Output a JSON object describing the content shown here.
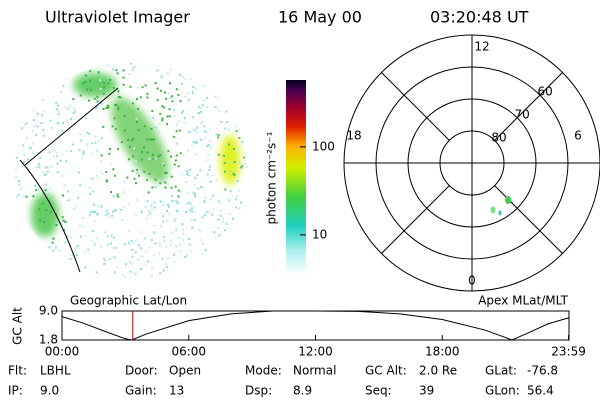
{
  "header": {
    "title": "Ultraviolet Imager",
    "date": "16 May 00",
    "time": "03:20:48 UT"
  },
  "colorbar": {
    "label": "photon cm⁻²s⁻¹",
    "scale": "log",
    "lim": [
      3.5,
      575
    ],
    "ticks": [
      10,
      100
    ]
  },
  "polar": {
    "rlim": [
      50,
      90
    ],
    "hour_labels": [
      "12",
      "18",
      "6",
      "0"
    ],
    "lat_rings": [
      60,
      70,
      80
    ]
  },
  "timeline": {
    "left_label": "Geographic Lat/Lon",
    "right_label": "Apex MLat/MLT",
    "ylabel": "GC Alt",
    "xlim": [
      0,
      24
    ],
    "ylim": [
      1.8,
      9.0
    ],
    "yticks": [
      {
        "value": 1.8,
        "label": "1.8"
      },
      {
        "value": 9.0,
        "label": "9.0"
      }
    ],
    "xticks": [
      {
        "value": 0,
        "label": "00:00"
      },
      {
        "value": 6,
        "label": "06:00"
      },
      {
        "value": 12,
        "label": "12:00"
      },
      {
        "value": 18,
        "label": "18:00"
      },
      {
        "value": 23.98,
        "label": "23:59"
      }
    ],
    "x": [
      0,
      1,
      2,
      3,
      3.3,
      4,
      6,
      8,
      10,
      12,
      14,
      16,
      18,
      20,
      21,
      21.3,
      22,
      23,
      23.98
    ],
    "values": [
      7.6,
      6.0,
      4.0,
      2.1,
      1.8,
      3.3,
      6.6,
      8.3,
      9.0,
      9.0,
      8.9,
      8.3,
      6.9,
      4.3,
      2.4,
      1.8,
      3.4,
      5.8,
      7.3
    ],
    "marker": 3.35,
    "marker_color": "#c00000"
  },
  "footer": [
    [
      {
        "label": "Flt:",
        "value": "LBHL"
      },
      {
        "label": "Door:",
        "value": "Open"
      },
      {
        "label": "Mode:",
        "value": "Normal"
      },
      {
        "label": "GC Alt:",
        "value": "2.0 Re"
      },
      {
        "label": "GLat:",
        "value": "-76.8"
      }
    ],
    [
      {
        "label": "IP:",
        "value": "9.0"
      },
      {
        "label": "Gain:",
        "value": "13"
      },
      {
        "label": "Dsp:",
        "value": "8.9"
      },
      {
        "label": "Seq:",
        "value": "39"
      },
      {
        "label": "GLon:",
        "value": "56.4"
      }
    ]
  ]
}
